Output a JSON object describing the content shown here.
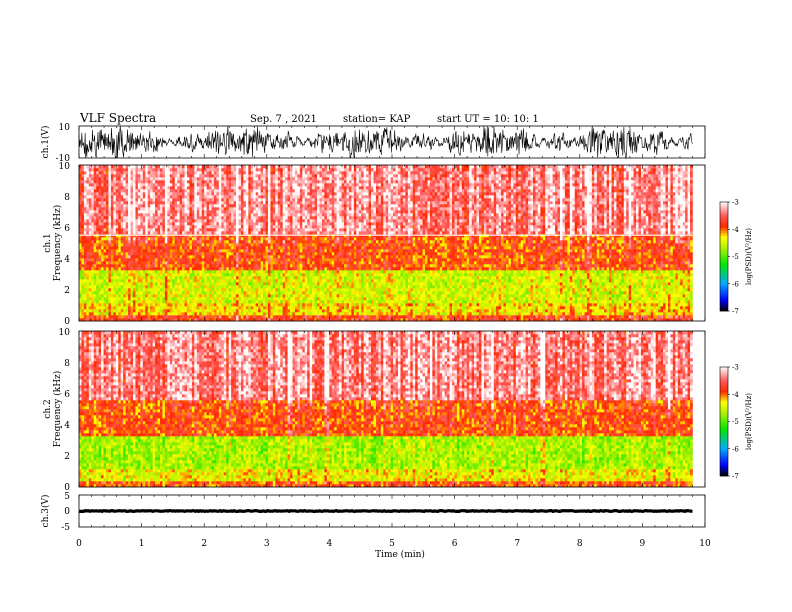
{
  "header": {
    "title": "VLF Spectra",
    "date": "Sep. 7  , 2021",
    "station": "station= KAP",
    "start": "start UT =   10: 10: 1"
  },
  "chart_data": [
    {
      "type": "line",
      "ylabel": "ch.1(V)",
      "ylim": [
        -10,
        10
      ],
      "y_ticks": [
        "10",
        "-10"
      ],
      "xlim": [
        0,
        10
      ],
      "style": "dense noisy waveform filling most of the range, black"
    },
    {
      "type": "heatmap",
      "ylabel": "ch.1\nFrequency (kHz)",
      "ylim": [
        0,
        10
      ],
      "y_ticks": [
        "0",
        "2",
        "4",
        "6",
        "8",
        "10"
      ],
      "xlim": [
        0,
        10
      ],
      "data_end_min": 9.8,
      "colorbar": {
        "label": "log(PSD)(V²/Hz)",
        "range": [
          -7,
          -3
        ],
        "ticks": [
          "-3",
          "-4",
          "-5",
          "-6",
          "-7"
        ]
      },
      "bands_kHz": [
        {
          "range": [
            0,
            0.3
          ],
          "level": -3.8
        },
        {
          "range": [
            0.3,
            1.2
          ],
          "level": -4.3
        },
        {
          "range": [
            1.2,
            3.3
          ],
          "level": -4.5
        },
        {
          "range": [
            3.3,
            5.5
          ],
          "level": -3.9
        },
        {
          "range": [
            5.5,
            10
          ],
          "level": -3.4
        }
      ],
      "lines_kHz": [
        5.5
      ]
    },
    {
      "type": "heatmap",
      "ylabel": "ch.2\nFrequency (kHz)",
      "ylim": [
        0,
        10
      ],
      "y_ticks": [
        "0",
        "2",
        "4",
        "6",
        "8",
        "10"
      ],
      "xlim": [
        0,
        10
      ],
      "data_end_min": 9.8,
      "colorbar": {
        "label": "log(PSD)(V²/Hz)",
        "range": [
          -7,
          -3
        ],
        "ticks": [
          "-3",
          "-4",
          "-5",
          "-6",
          "-7"
        ]
      },
      "bands_kHz": [
        {
          "range": [
            0,
            0.3
          ],
          "level": -3.9
        },
        {
          "range": [
            0.3,
            1.2
          ],
          "level": -4.4
        },
        {
          "range": [
            1.2,
            3.3
          ],
          "level": -4.7
        },
        {
          "range": [
            3.3,
            5.5
          ],
          "level": -3.9
        },
        {
          "range": [
            5.5,
            10
          ],
          "level": -3.4
        }
      ],
      "lines_kHz": []
    },
    {
      "type": "line",
      "ylabel": "ch.3(V)",
      "ylim": [
        -5,
        5
      ],
      "y_ticks": [
        "5",
        "0",
        "-5"
      ],
      "xlim": [
        0,
        10
      ],
      "style": "thick nearly constant trace near 0 V, black"
    }
  ],
  "xaxis": {
    "label": "Time (min)",
    "ticks": [
      "0",
      "1",
      "2",
      "3",
      "4",
      "5",
      "6",
      "7",
      "8",
      "9",
      "10"
    ]
  }
}
